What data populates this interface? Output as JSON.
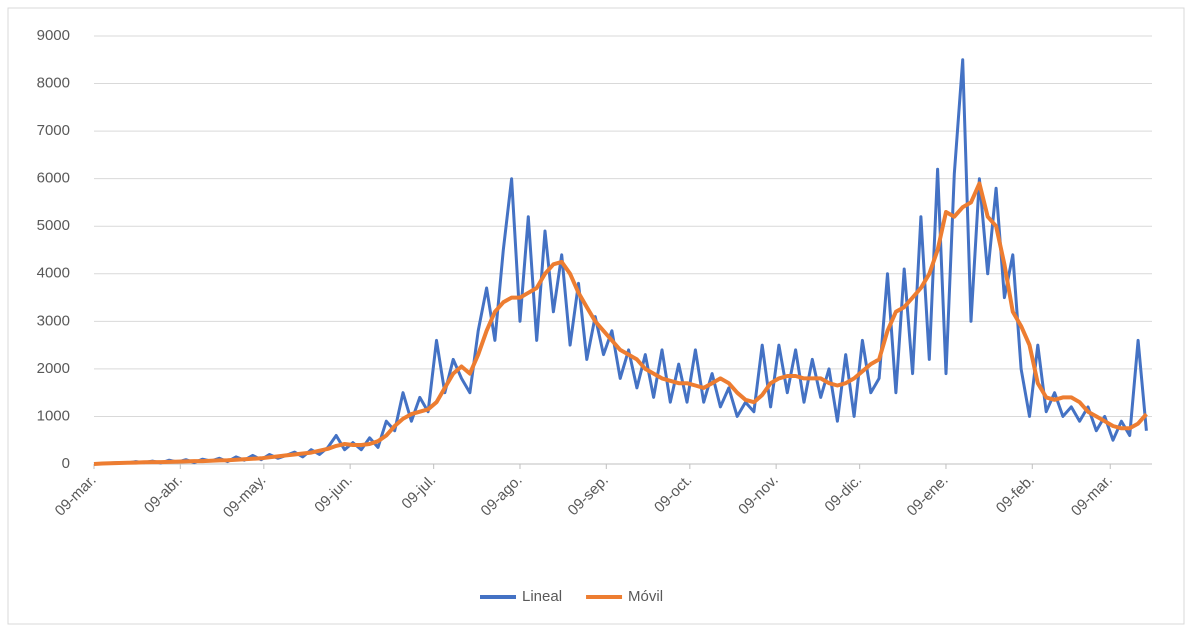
{
  "chart_data": {
    "type": "line",
    "x": [
      0,
      3,
      6,
      9,
      12,
      15,
      18,
      21,
      24,
      27,
      30,
      33,
      36,
      39,
      42,
      45,
      48,
      51,
      54,
      57,
      60,
      63,
      66,
      69,
      72,
      75,
      78,
      81,
      84,
      87,
      90,
      93,
      96,
      99,
      102,
      105,
      108,
      111,
      114,
      117,
      120,
      123,
      126,
      129,
      132,
      135,
      138,
      141,
      144,
      147,
      150,
      153,
      156,
      159,
      162,
      165,
      168,
      171,
      174,
      177,
      180,
      183,
      186,
      189,
      192,
      195,
      198,
      201,
      204,
      207,
      210,
      213,
      216,
      219,
      222,
      225,
      228,
      231,
      234,
      237,
      240,
      243,
      246,
      249,
      252,
      255,
      258,
      261,
      264,
      267,
      270,
      273,
      276,
      279,
      282,
      285,
      288,
      291,
      294,
      297,
      300,
      303,
      306,
      309,
      312,
      315,
      318,
      321,
      324,
      327,
      330,
      333,
      336,
      339,
      342,
      345,
      348,
      351,
      354,
      357,
      360,
      363,
      366,
      369,
      372,
      375,
      378
    ],
    "series": [
      {
        "name": "Lineal",
        "color": "#4472c4",
        "values": [
          0,
          10,
          20,
          30,
          20,
          50,
          30,
          60,
          20,
          80,
          40,
          90,
          30,
          100,
          60,
          120,
          50,
          150,
          80,
          180,
          90,
          200,
          120,
          180,
          250,
          150,
          300,
          200,
          350,
          600,
          300,
          450,
          300,
          550,
          350,
          900,
          700,
          1500,
          900,
          1400,
          1100,
          2600,
          1500,
          2200,
          1800,
          1500,
          2800,
          3700,
          2600,
          4500,
          6000,
          3000,
          5200,
          2600,
          4900,
          3200,
          4400,
          2500,
          3800,
          2200,
          3100,
          2300,
          2800,
          1800,
          2400,
          1600,
          2300,
          1400,
          2400,
          1300,
          2100,
          1300,
          2400,
          1300,
          1900,
          1200,
          1600,
          1000,
          1300,
          1100,
          2500,
          1200,
          2500,
          1500,
          2400,
          1300,
          2200,
          1400,
          2000,
          900,
          2300,
          1000,
          2600,
          1500,
          1800,
          4000,
          1500,
          4100,
          1900,
          5200,
          2200,
          6200,
          1900,
          6100,
          8500,
          3000,
          6000,
          4000,
          5800,
          3500,
          4400,
          2000,
          1000,
          2500,
          1100,
          1500,
          1000,
          1200,
          900,
          1200,
          700,
          1000,
          500,
          900,
          600,
          2600,
          700
        ]
      },
      {
        "name": "Móvil",
        "color": "#ed7d31",
        "values": [
          0,
          10,
          15,
          20,
          25,
          30,
          35,
          40,
          40,
          45,
          50,
          55,
          60,
          60,
          70,
          75,
          80,
          90,
          100,
          110,
          120,
          140,
          160,
          180,
          200,
          220,
          240,
          280,
          320,
          380,
          420,
          400,
          400,
          420,
          480,
          600,
          800,
          950,
          1050,
          1100,
          1150,
          1300,
          1600,
          1900,
          2050,
          1900,
          2300,
          2800,
          3200,
          3400,
          3500,
          3500,
          3600,
          3700,
          4000,
          4200,
          4250,
          4000,
          3600,
          3300,
          3000,
          2800,
          2600,
          2400,
          2300,
          2200,
          2000,
          1900,
          1800,
          1750,
          1700,
          1700,
          1650,
          1600,
          1700,
          1800,
          1700,
          1500,
          1350,
          1300,
          1450,
          1700,
          1800,
          1850,
          1850,
          1800,
          1800,
          1800,
          1700,
          1650,
          1700,
          1800,
          1950,
          2100,
          2200,
          2800,
          3200,
          3300,
          3500,
          3700,
          4000,
          4500,
          5300,
          5200,
          5400,
          5500,
          5900,
          5200,
          5000,
          4200,
          3200,
          2900,
          2500,
          1700,
          1400,
          1350,
          1400,
          1400,
          1300,
          1100,
          1000,
          900,
          800,
          750,
          750,
          850,
          1050
        ]
      }
    ],
    "xlim": [
      0,
      380
    ],
    "xticks": [
      {
        "value": 0,
        "label": "09-mar."
      },
      {
        "value": 31,
        "label": "09-abr."
      },
      {
        "value": 61,
        "label": "09-may."
      },
      {
        "value": 92,
        "label": "09-jun."
      },
      {
        "value": 122,
        "label": "09-jul."
      },
      {
        "value": 153,
        "label": "09-ago."
      },
      {
        "value": 184,
        "label": "09-sep."
      },
      {
        "value": 214,
        "label": "09-oct."
      },
      {
        "value": 245,
        "label": "09-nov."
      },
      {
        "value": 275,
        "label": "09-dic."
      },
      {
        "value": 306,
        "label": "09-ene."
      },
      {
        "value": 337,
        "label": "09-feb."
      },
      {
        "value": 365,
        "label": "09-mar."
      }
    ],
    "ylim": [
      0,
      9000
    ],
    "yticks": [
      0,
      1000,
      2000,
      3000,
      4000,
      5000,
      6000,
      7000,
      8000,
      9000
    ],
    "grid": true,
    "legend": "bottom"
  }
}
